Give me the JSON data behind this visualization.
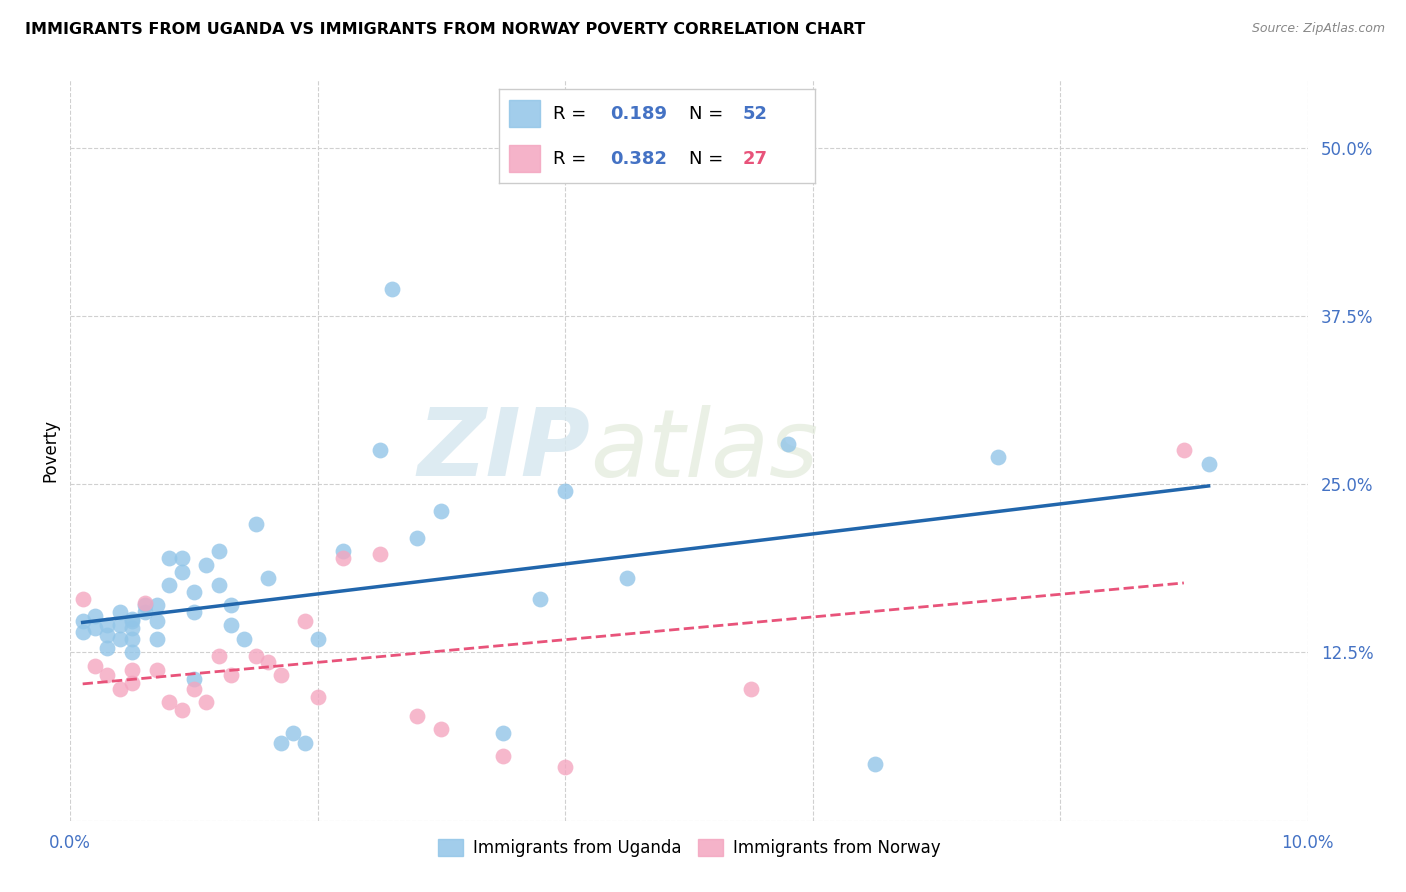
{
  "title": "IMMIGRANTS FROM UGANDA VS IMMIGRANTS FROM NORWAY POVERTY CORRELATION CHART",
  "source": "Source: ZipAtlas.com",
  "ylabel": "Poverty",
  "xlim": [
    0.0,
    0.1
  ],
  "ylim": [
    0.0,
    0.55
  ],
  "xticks": [
    0.0,
    0.02,
    0.04,
    0.06,
    0.08,
    0.1
  ],
  "xtick_labels": [
    "0.0%",
    "",
    "",
    "",
    "",
    "10.0%"
  ],
  "ytick_positions": [
    0.0,
    0.125,
    0.25,
    0.375,
    0.5
  ],
  "ytick_labels": [
    "",
    "12.5%",
    "25.0%",
    "37.5%",
    "50.0%"
  ],
  "uganda_color": "#92c5e8",
  "norway_color": "#f4a6c0",
  "uganda_line_color": "#2166ac",
  "norway_line_color": "#e8537a",
  "r_uganda": 0.189,
  "n_uganda": 52,
  "r_norway": 0.382,
  "n_norway": 27,
  "watermark": "ZIPatlas",
  "uganda_scatter_x": [
    0.001,
    0.001,
    0.002,
    0.002,
    0.003,
    0.003,
    0.003,
    0.004,
    0.004,
    0.004,
    0.005,
    0.005,
    0.005,
    0.005,
    0.005,
    0.006,
    0.006,
    0.007,
    0.007,
    0.007,
    0.008,
    0.008,
    0.009,
    0.009,
    0.01,
    0.01,
    0.01,
    0.011,
    0.012,
    0.012,
    0.013,
    0.013,
    0.014,
    0.015,
    0.016,
    0.017,
    0.018,
    0.019,
    0.02,
    0.022,
    0.025,
    0.026,
    0.028,
    0.03,
    0.035,
    0.038,
    0.04,
    0.045,
    0.058,
    0.065,
    0.075,
    0.092
  ],
  "uganda_scatter_y": [
    0.148,
    0.14,
    0.152,
    0.143,
    0.145,
    0.138,
    0.128,
    0.155,
    0.145,
    0.135,
    0.15,
    0.148,
    0.143,
    0.135,
    0.125,
    0.16,
    0.155,
    0.16,
    0.148,
    0.135,
    0.195,
    0.175,
    0.195,
    0.185,
    0.17,
    0.155,
    0.105,
    0.19,
    0.2,
    0.175,
    0.16,
    0.145,
    0.135,
    0.22,
    0.18,
    0.058,
    0.065,
    0.058,
    0.135,
    0.2,
    0.275,
    0.395,
    0.21,
    0.23,
    0.065,
    0.165,
    0.245,
    0.18,
    0.28,
    0.042,
    0.27,
    0.265
  ],
  "norway_scatter_x": [
    0.001,
    0.002,
    0.003,
    0.004,
    0.005,
    0.005,
    0.006,
    0.007,
    0.008,
    0.009,
    0.01,
    0.011,
    0.012,
    0.013,
    0.015,
    0.016,
    0.017,
    0.019,
    0.02,
    0.022,
    0.025,
    0.028,
    0.03,
    0.035,
    0.04,
    0.055,
    0.09
  ],
  "norway_scatter_y": [
    0.165,
    0.115,
    0.108,
    0.098,
    0.112,
    0.102,
    0.162,
    0.112,
    0.088,
    0.082,
    0.098,
    0.088,
    0.122,
    0.108,
    0.122,
    0.118,
    0.108,
    0.148,
    0.092,
    0.195,
    0.198,
    0.078,
    0.068,
    0.048,
    0.04,
    0.098,
    0.275
  ],
  "background_color": "#ffffff",
  "grid_color": "#d0d0d0",
  "legend_r_color": "#4472c4",
  "legend_n_color_ug": "#4472c4",
  "legend_n_color_no": "#e8537a"
}
